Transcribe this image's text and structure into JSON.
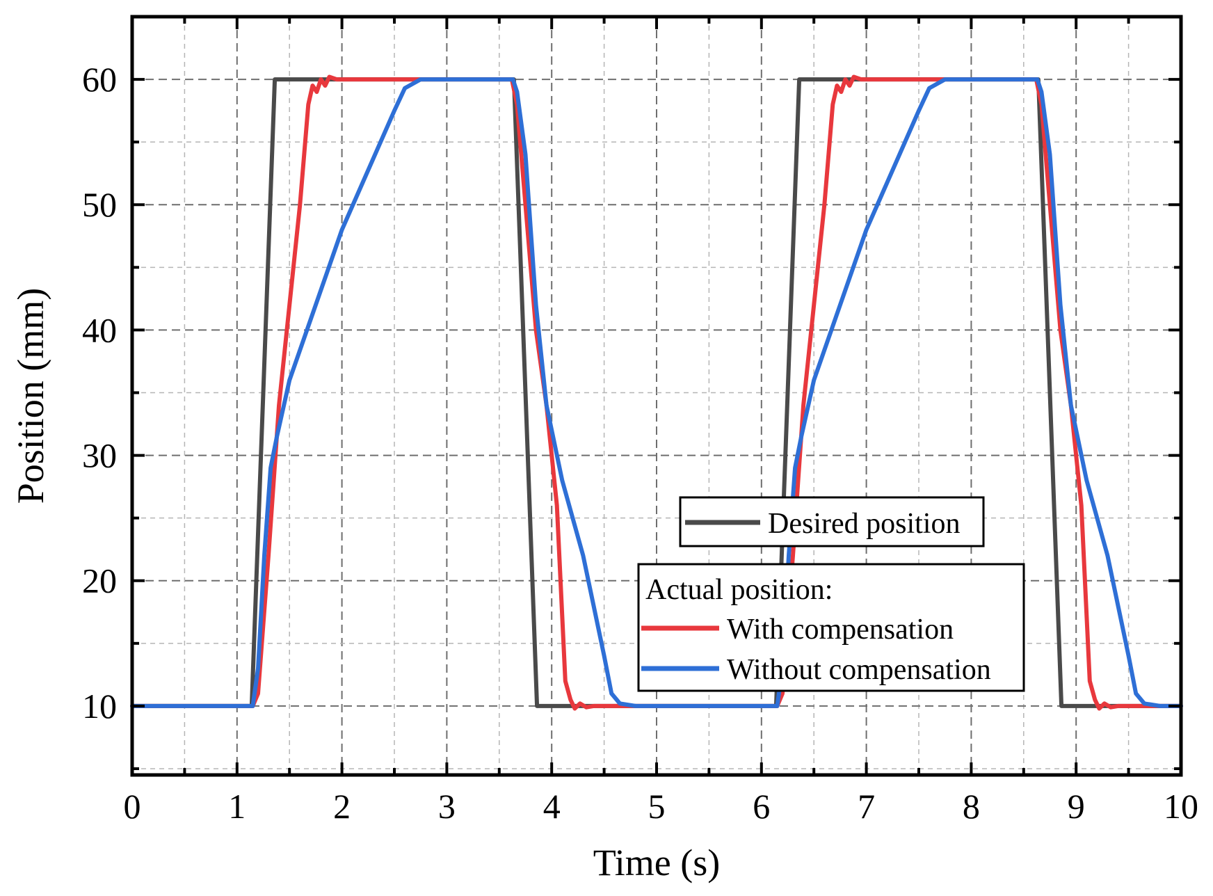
{
  "chart_data": {
    "type": "line",
    "title": "",
    "xlabel": "Time (s)",
    "ylabel": "Position (mm)",
    "xlim": [
      0,
      10
    ],
    "ylim": [
      4.5,
      65
    ],
    "xticks": [
      "0",
      "1",
      "2",
      "3",
      "4",
      "5",
      "6",
      "7",
      "8",
      "9",
      "10"
    ],
    "yticks": [
      "10",
      "20",
      "30",
      "40",
      "50",
      "60"
    ],
    "grid": true,
    "colors": {
      "desired": "#4a4a4a",
      "with": "#e8383d",
      "without": "#2e6fd6"
    },
    "legend": {
      "desired_box": {
        "placement": "right-middle",
        "label": "Desired position"
      },
      "actual_box": {
        "placement": "bottom-right",
        "title": "Actual position:",
        "labels": [
          "With compensation",
          "Without compensation"
        ]
      }
    },
    "series": [
      {
        "name": "Desired position",
        "points": [
          [
            0,
            10
          ],
          [
            1.14,
            10
          ],
          [
            1.36,
            60
          ],
          [
            3.64,
            60
          ],
          [
            3.86,
            10
          ],
          [
            6.14,
            10
          ],
          [
            6.36,
            60
          ],
          [
            8.64,
            60
          ],
          [
            8.86,
            10
          ],
          [
            10,
            10
          ]
        ]
      },
      {
        "name": "With compensation",
        "points": [
          [
            0,
            10
          ],
          [
            1.15,
            10
          ],
          [
            1.2,
            11
          ],
          [
            1.3,
            22
          ],
          [
            1.4,
            34
          ],
          [
            1.5,
            42
          ],
          [
            1.6,
            50
          ],
          [
            1.68,
            58
          ],
          [
            1.72,
            59.5
          ],
          [
            1.76,
            59
          ],
          [
            1.8,
            60
          ],
          [
            1.84,
            59.5
          ],
          [
            1.88,
            60.2
          ],
          [
            1.95,
            60
          ],
          [
            3.62,
            60
          ],
          [
            3.67,
            58
          ],
          [
            3.75,
            50
          ],
          [
            3.85,
            40
          ],
          [
            3.95,
            34
          ],
          [
            4.05,
            26
          ],
          [
            4.13,
            12
          ],
          [
            4.18,
            10.5
          ],
          [
            4.22,
            9.8
          ],
          [
            4.27,
            10.2
          ],
          [
            4.33,
            9.9
          ],
          [
            4.4,
            10
          ],
          [
            6.15,
            10
          ],
          [
            6.2,
            11
          ],
          [
            6.3,
            22
          ],
          [
            6.4,
            34
          ],
          [
            6.5,
            42
          ],
          [
            6.6,
            50
          ],
          [
            6.68,
            58
          ],
          [
            6.72,
            59.5
          ],
          [
            6.76,
            59
          ],
          [
            6.8,
            60
          ],
          [
            6.84,
            59.5
          ],
          [
            6.88,
            60.2
          ],
          [
            6.95,
            60
          ],
          [
            8.62,
            60
          ],
          [
            8.67,
            58
          ],
          [
            8.75,
            50
          ],
          [
            8.85,
            40
          ],
          [
            8.95,
            34
          ],
          [
            9.05,
            26
          ],
          [
            9.13,
            12
          ],
          [
            9.18,
            10.5
          ],
          [
            9.22,
            9.8
          ],
          [
            9.27,
            10.2
          ],
          [
            9.33,
            9.9
          ],
          [
            9.4,
            10
          ],
          [
            10,
            10
          ]
        ]
      },
      {
        "name": "Without compensation",
        "points": [
          [
            0,
            10
          ],
          [
            1.15,
            10
          ],
          [
            1.2,
            13
          ],
          [
            1.26,
            22
          ],
          [
            1.32,
            29
          ],
          [
            1.38,
            31.5
          ],
          [
            1.5,
            36
          ],
          [
            2.0,
            48
          ],
          [
            2.5,
            57.5
          ],
          [
            2.6,
            59.3
          ],
          [
            2.75,
            60
          ],
          [
            3.63,
            60
          ],
          [
            3.67,
            59
          ],
          [
            3.75,
            54
          ],
          [
            3.85,
            42
          ],
          [
            3.95,
            34
          ],
          [
            4.1,
            28
          ],
          [
            4.3,
            22
          ],
          [
            4.5,
            14
          ],
          [
            4.57,
            11
          ],
          [
            4.65,
            10.2
          ],
          [
            4.8,
            10
          ],
          [
            6.15,
            10
          ],
          [
            6.2,
            13
          ],
          [
            6.26,
            22
          ],
          [
            6.32,
            29
          ],
          [
            6.38,
            31.5
          ],
          [
            6.5,
            36
          ],
          [
            7.0,
            48
          ],
          [
            7.5,
            57.5
          ],
          [
            7.6,
            59.3
          ],
          [
            7.75,
            60
          ],
          [
            8.63,
            60
          ],
          [
            8.67,
            59
          ],
          [
            8.75,
            54
          ],
          [
            8.85,
            42
          ],
          [
            8.95,
            34
          ],
          [
            9.1,
            28
          ],
          [
            9.3,
            22
          ],
          [
            9.5,
            14
          ],
          [
            9.57,
            11
          ],
          [
            9.65,
            10.2
          ],
          [
            9.8,
            10
          ],
          [
            10,
            10
          ]
        ]
      }
    ]
  }
}
